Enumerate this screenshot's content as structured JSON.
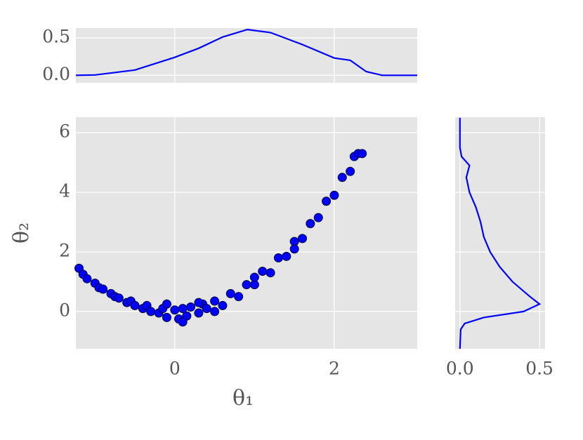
{
  "chart_data": [
    {
      "type": "line",
      "color": "#0000ff",
      "x": [
        -1.24,
        -1.0,
        -0.5,
        0,
        0.3,
        0.6,
        0.91,
        1.2,
        1.6,
        2.0,
        2.2,
        2.4,
        2.6,
        3.04
      ],
      "values": [
        0.0,
        0.005,
        0.07,
        0.24,
        0.36,
        0.51,
        0.61,
        0.57,
        0.41,
        0.23,
        0.2,
        0.05,
        0.0,
        0.0
      ],
      "xlim": [
        -1.24,
        3.04
      ],
      "ylim": [
        -0.1,
        0.63
      ],
      "xticks": [
        0,
        2
      ],
      "xtick_labels": false,
      "yticks": [
        {
          "value": 0,
          "label": "0.0"
        },
        {
          "value": 0.5,
          "label": "0.5"
        }
      ],
      "grid": true
    },
    {
      "type": "scatter",
      "xlabel": "θ₁",
      "ylabel": "θ₂",
      "color": "#0000ff",
      "edgecolor": "#000033",
      "x": [
        -1.2,
        -1.15,
        -1.1,
        -1.0,
        -0.95,
        -0.9,
        -0.8,
        -0.75,
        -0.7,
        -0.6,
        -0.55,
        -0.5,
        -0.4,
        -0.35,
        -0.3,
        -0.2,
        -0.15,
        -0.1,
        0,
        0.05,
        0.1,
        0.15,
        0.2,
        0.3,
        0.35,
        0.4,
        0.5,
        0.6,
        0.7,
        0.8,
        0.9,
        1.0,
        1.1,
        1.2,
        1.3,
        1.4,
        1.5,
        1.6,
        1.7,
        1.8,
        1.9,
        2.0,
        2.1,
        2.2,
        2.25,
        2.3,
        2.35,
        -0.1,
        0.1,
        0.3,
        0.5,
        1.0,
        1.5
      ],
      "y": [
        1.45,
        1.25,
        1.1,
        0.95,
        0.8,
        0.75,
        0.6,
        0.5,
        0.45,
        0.3,
        0.35,
        0.2,
        0.1,
        0.2,
        0.0,
        -0.05,
        0.1,
        -0.2,
        0.05,
        -0.25,
        0.1,
        -0.15,
        0.15,
        -0.05,
        0.25,
        0.1,
        0.35,
        0.2,
        0.6,
        0.5,
        0.9,
        0.9,
        1.35,
        1.3,
        1.8,
        1.85,
        2.35,
        2.45,
        2.95,
        3.15,
        3.7,
        3.9,
        4.5,
        4.7,
        5.2,
        5.3,
        5.3,
        0.25,
        -0.35,
        0.3,
        0.0,
        1.15,
        2.1
      ],
      "xlim": [
        -1.24,
        3.04
      ],
      "ylim": [
        -1.25,
        6.52
      ],
      "xticks": [
        0,
        2
      ],
      "yticks": [
        0,
        2,
        4,
        6
      ],
      "grid": true
    },
    {
      "type": "line",
      "orientation": "horizontal",
      "color": "#0000ff",
      "y": [
        6.5,
        5.5,
        5.2,
        4.9,
        4.5,
        4.0,
        3.5,
        3.0,
        2.5,
        2.0,
        1.5,
        1.0,
        0.5,
        0.25,
        0,
        -0.2,
        -0.4,
        -0.6,
        -1.25
      ],
      "values": [
        0.0,
        0.0,
        0.01,
        0.06,
        0.04,
        0.06,
        0.1,
        0.13,
        0.15,
        0.19,
        0.25,
        0.33,
        0.44,
        0.5,
        0.4,
        0.15,
        0.03,
        0.005,
        0.0
      ],
      "xlim": [
        -0.03,
        0.535
      ],
      "ylim": [
        -1.25,
        6.52
      ],
      "xticks": [
        {
          "value": 0,
          "label": "0.0"
        },
        {
          "value": 0.5,
          "label": "0.5"
        }
      ],
      "yticks": [
        0,
        2,
        4,
        6
      ],
      "ytick_labels": false,
      "grid": true
    }
  ]
}
